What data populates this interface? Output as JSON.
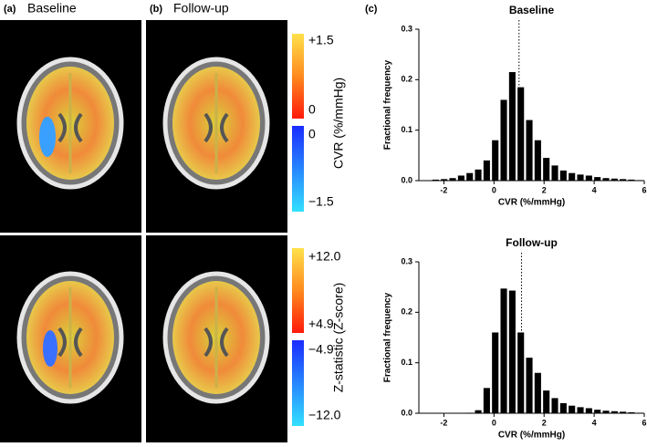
{
  "panels": {
    "a": {
      "label": "(a)",
      "title": "Baseline"
    },
    "b": {
      "label": "(b)",
      "title": "Follow-up"
    },
    "c": {
      "label": "(c)"
    }
  },
  "colorbars": [
    {
      "label": "CVR (%/mmHg)",
      "ticks": [
        "+1.5",
        "0",
        "0",
        "−1.5"
      ]
    },
    {
      "label": "Z-statistic (Z-score)",
      "ticks": [
        "+12.0",
        "+4.9",
        "−4.9",
        "−12.0"
      ]
    }
  ],
  "chart_data": [
    {
      "type": "histogram",
      "title": "Baseline",
      "xlabel": "CVR (%/mmHg)",
      "ylabel": "Fractional  frequency",
      "color": "#000000",
      "bins": [
        -2.5,
        -2.16,
        -1.82,
        -1.48,
        -1.14,
        -0.8,
        -0.46,
        -0.12,
        0.22,
        0.56,
        0.9,
        1.24,
        1.58,
        1.92,
        2.26,
        2.6,
        2.94,
        3.28,
        3.62,
        3.96,
        4.3,
        4.64,
        4.98,
        5.32,
        5.66,
        6.0
      ],
      "values": [
        0.002,
        0.003,
        0.005,
        0.01,
        0.015,
        0.022,
        0.04,
        0.08,
        0.16,
        0.215,
        0.185,
        0.12,
        0.08,
        0.045,
        0.03,
        0.02,
        0.015,
        0.012,
        0.01,
        0.007,
        0.005,
        0.004,
        0.003,
        0.002,
        0.001
      ],
      "reference_line_x": 1.0,
      "xlim": [
        -3,
        6
      ],
      "ylim": [
        0,
        0.3
      ],
      "xticks": [
        -2,
        0,
        2,
        4,
        6
      ],
      "yticks": [
        {
          "value": 0,
          "label": "0.0"
        },
        0.1,
        0.2,
        0.3
      ]
    },
    {
      "type": "histogram",
      "title": "Follow-up",
      "xlabel": "CVR (%/mmHg)",
      "ylabel": "Fractional  frequency",
      "color": "#000000",
      "bins": [
        -2.5,
        -2.16,
        -1.82,
        -1.48,
        -1.14,
        -0.8,
        -0.46,
        -0.12,
        0.22,
        0.56,
        0.9,
        1.24,
        1.58,
        1.92,
        2.26,
        2.6,
        2.94,
        3.28,
        3.62,
        3.96,
        4.3,
        4.64,
        4.98,
        5.32,
        5.66,
        6.0
      ],
      "values": [
        0,
        0,
        0,
        0,
        0.001,
        0.006,
        0.05,
        0.16,
        0.247,
        0.243,
        0.16,
        0.11,
        0.08,
        0.045,
        0.03,
        0.02,
        0.015,
        0.012,
        0.01,
        0.007,
        0.005,
        0.004,
        0.003,
        0.002,
        0.001
      ],
      "reference_line_x": 1.1,
      "xlim": [
        -3,
        6
      ],
      "ylim": [
        0,
        0.3
      ],
      "xticks": [
        -2,
        0,
        2,
        4,
        6
      ],
      "yticks": [
        {
          "value": 0,
          "label": "0.0"
        },
        0.1,
        0.2,
        0.3
      ]
    }
  ]
}
